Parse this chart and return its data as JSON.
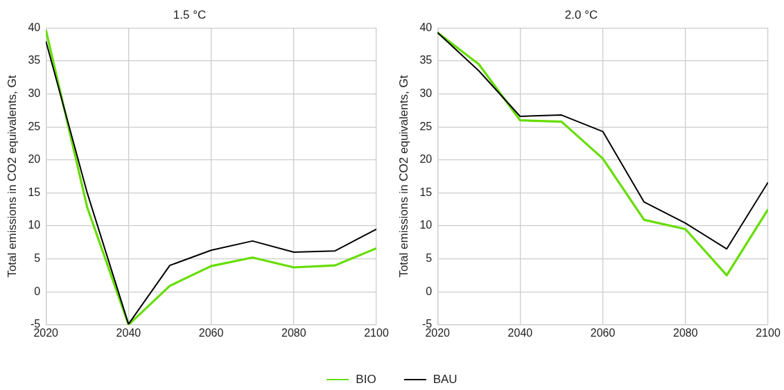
{
  "chart_data": [
    {
      "type": "line",
      "title": "1.5 °C",
      "ylabel": "Total emissions in CO2 equivalents, Gt",
      "x": [
        2020,
        2030,
        2040,
        2050,
        2060,
        2070,
        2080,
        2090,
        2100
      ],
      "xlim": [
        2020,
        2100
      ],
      "xticks": [
        2020,
        2040,
        2060,
        2080,
        2100
      ],
      "ylim": [
        -5,
        40
      ],
      "yticks": [
        -5,
        0,
        5,
        10,
        15,
        20,
        25,
        30,
        35,
        40
      ],
      "grid": true,
      "legend": "bottom",
      "marker": "none",
      "line_style": "solid",
      "series": [
        {
          "name": "BIO",
          "color": "#66dd00",
          "values": [
            39.7,
            12.8,
            -5,
            0.9,
            3.9,
            5.2,
            3.7,
            4.0,
            6.6
          ]
        },
        {
          "name": "BAU",
          "color": "#000000",
          "values": [
            38.0,
            15.0,
            -4.9,
            4.0,
            6.3,
            7.7,
            6.0,
            6.2,
            9.5
          ]
        }
      ]
    },
    {
      "type": "line",
      "title": "2.0 °C",
      "ylabel": "Total emissions in CO2 equivalents, Gt",
      "x": [
        2020,
        2030,
        2040,
        2050,
        2060,
        2070,
        2080,
        2090,
        2100
      ],
      "xlim": [
        2020,
        2100
      ],
      "xticks": [
        2020,
        2040,
        2060,
        2080,
        2100
      ],
      "ylim": [
        -5,
        40
      ],
      "yticks": [
        -5,
        0,
        5,
        10,
        15,
        20,
        25,
        30,
        35,
        40
      ],
      "grid": true,
      "legend": "bottom",
      "marker": "none",
      "line_style": "solid",
      "series": [
        {
          "name": "BIO",
          "color": "#66dd00",
          "values": [
            39.3,
            34.5,
            26.0,
            25.8,
            20.2,
            10.9,
            9.5,
            2.5,
            12.5
          ]
        },
        {
          "name": "BAU",
          "color": "#000000",
          "values": [
            39.3,
            33.5,
            26.6,
            26.8,
            24.3,
            13.6,
            10.4,
            6.5,
            16.6
          ]
        }
      ]
    }
  ]
}
